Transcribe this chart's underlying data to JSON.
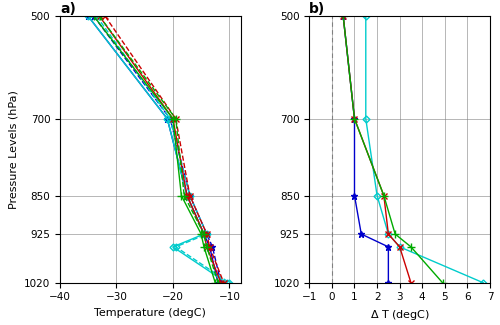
{
  "pressure_levels": [
    500,
    700,
    850,
    925,
    950,
    1020
  ],
  "panel_a": {
    "arctic_ocean_pre": [
      -35,
      -21.0,
      -17.5,
      -14.5,
      -13.5,
      -12.0
    ],
    "arctic_ocean_rile": [
      -34,
      -20.5,
      -17.0,
      -14.0,
      -13.0,
      -11.5
    ],
    "siberian_sea_pre": [
      -35,
      -21.0,
      -17.5,
      -14.5,
      -20.0,
      -10.5
    ],
    "siberian_sea_rile": [
      -33.5,
      -20.5,
      -17.0,
      -14.0,
      -19.5,
      -10.0
    ],
    "land_pre": [
      -33,
      -20.0,
      -17.5,
      -14.5,
      -14.0,
      -11.5
    ],
    "land_rile": [
      -32,
      -19.5,
      -17.0,
      -14.0,
      -13.5,
      -11.0
    ],
    "siberian_land_pre": [
      -34,
      -20.0,
      -18.5,
      -15.0,
      -14.5,
      -12.5
    ],
    "siberian_land_rile": [
      -33,
      -19.5,
      -18.0,
      -14.5,
      -14.0,
      -12.0
    ]
  },
  "panel_b": {
    "arctic_ocean": [
      0.5,
      1.0,
      1.0,
      1.3,
      2.5,
      2.5
    ],
    "siberian_sea": [
      1.5,
      1.5,
      2.0,
      2.5,
      3.0,
      6.7
    ],
    "land": [
      0.5,
      1.0,
      2.3,
      2.5,
      3.0,
      3.5
    ],
    "siberian_land": [
      0.5,
      1.0,
      2.3,
      2.8,
      3.5,
      4.9
    ]
  },
  "colors": {
    "arctic_ocean": "#0000CC",
    "siberian_sea": "#00CCCC",
    "land": "#CC0000",
    "siberian_land": "#00AA00"
  },
  "xlim_a": [
    -40,
    -8
  ],
  "xticks_a": [
    -40,
    -30,
    -20,
    -10
  ],
  "xlim_b": [
    -1,
    7
  ],
  "xticks_b": [
    -1,
    0,
    1,
    2,
    3,
    4,
    5,
    6,
    7
  ],
  "ylim": [
    500,
    1020
  ],
  "yticks": [
    500,
    700,
    850,
    925,
    1020
  ]
}
